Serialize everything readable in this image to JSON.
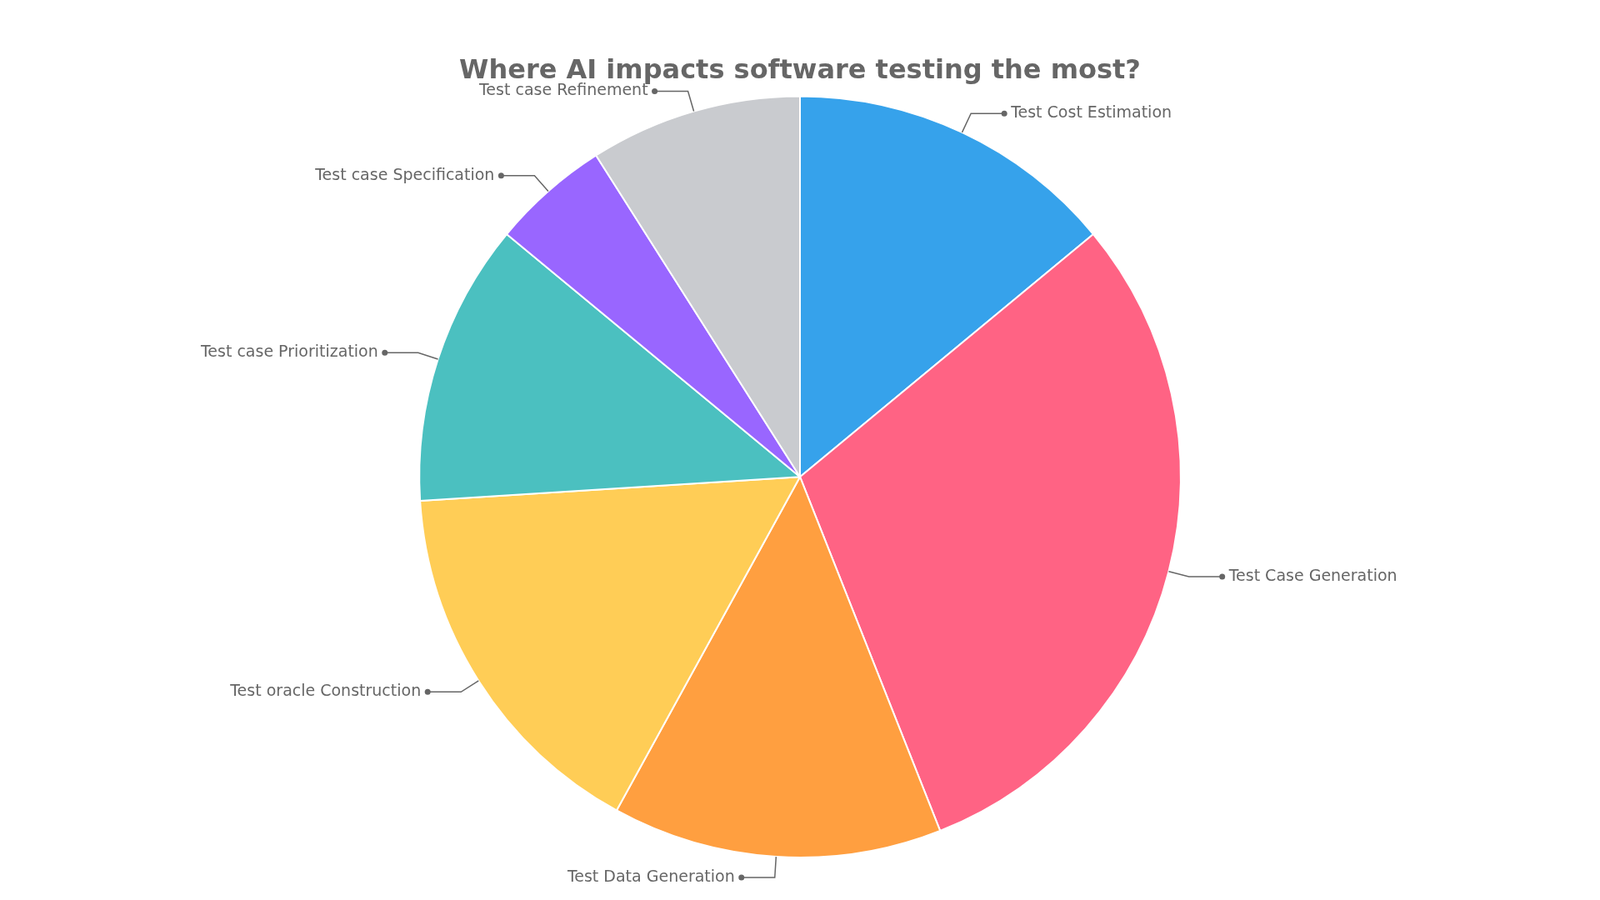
{
  "chart_data": {
    "type": "pie",
    "title": "Where AI impacts software testing the most?",
    "categories": [
      "Test Cost Estimation",
      "Test Case Generation",
      "Test Data Generation",
      "Test oracle Construction",
      "Test case Prioritization",
      "Test case Specification",
      "Test case Refinement"
    ],
    "values": [
      14,
      30,
      14,
      16,
      12,
      5,
      9
    ]
  }
}
